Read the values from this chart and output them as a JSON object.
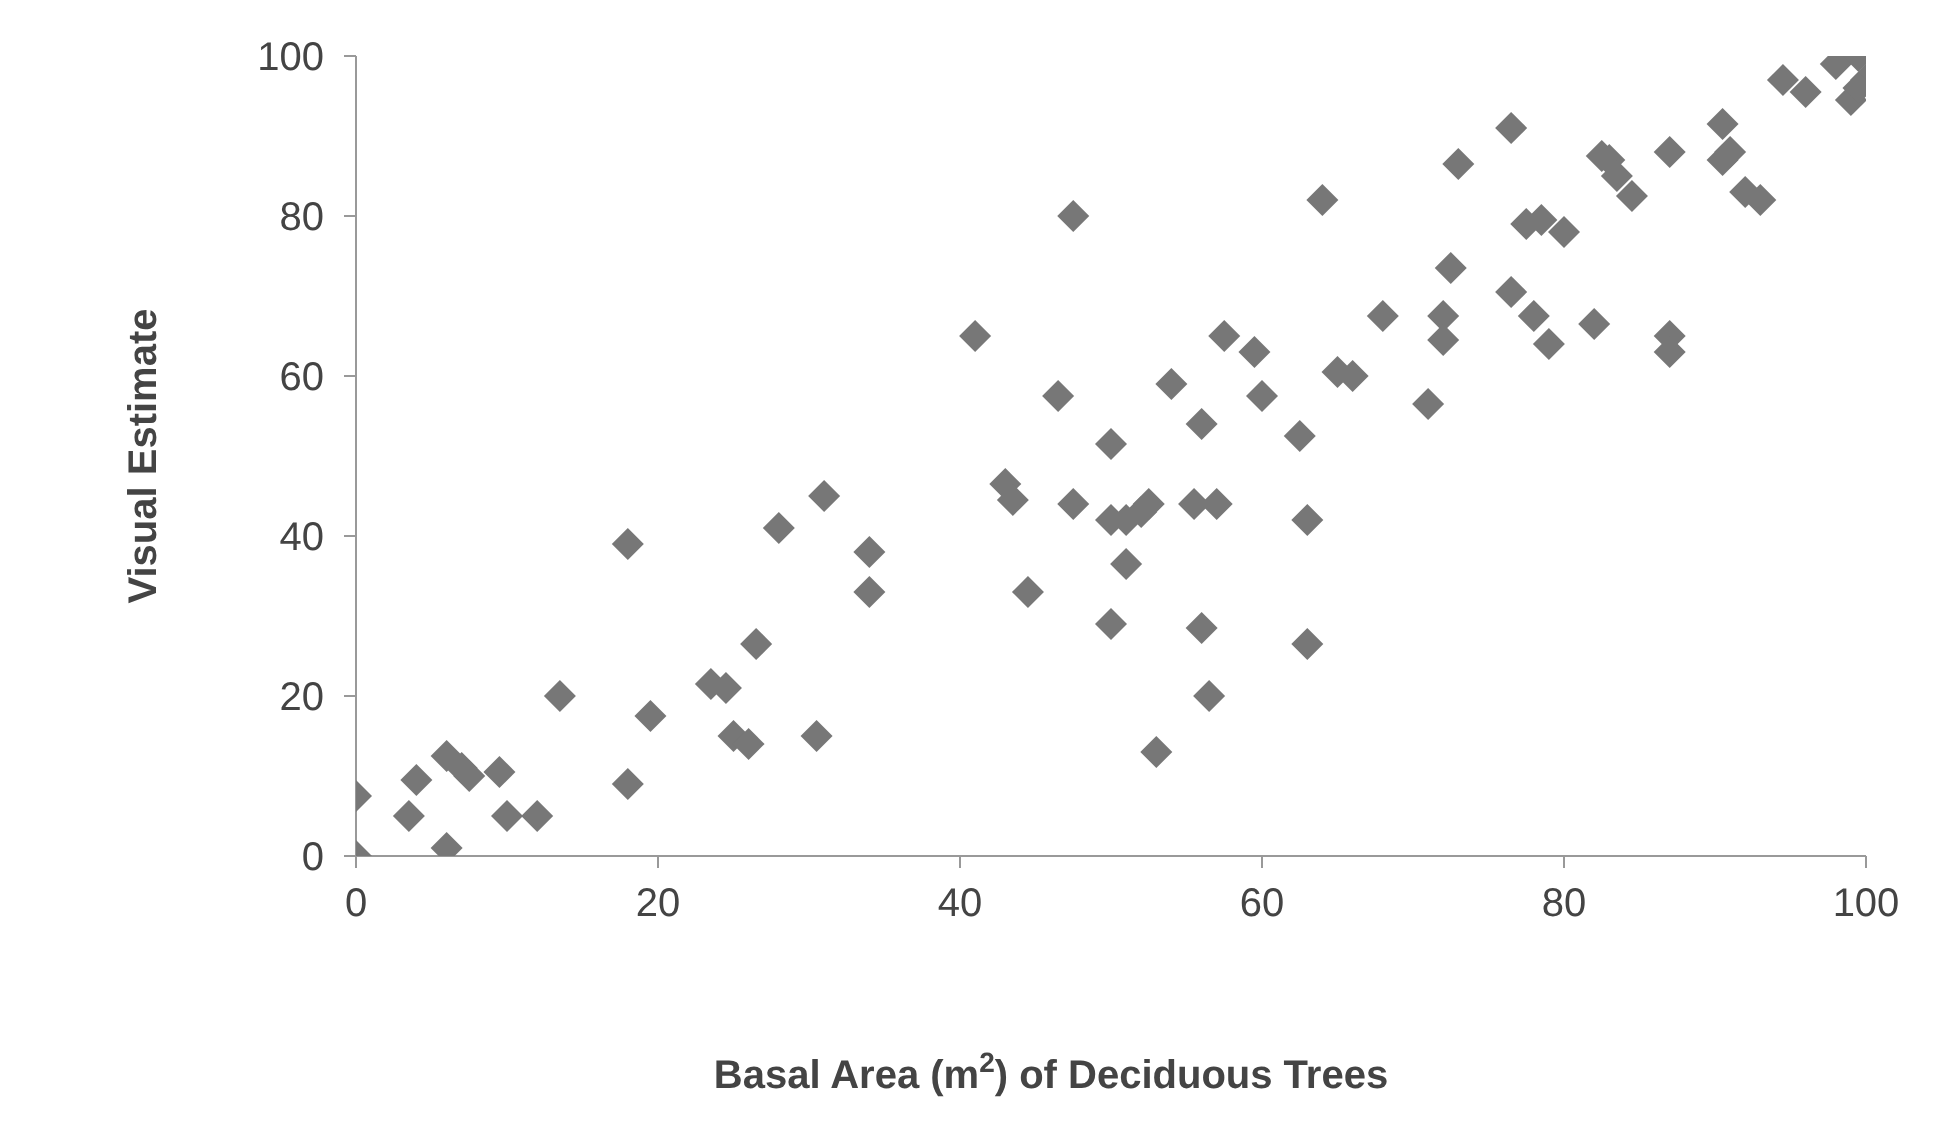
{
  "chart_data": {
    "type": "scatter",
    "xlabel": "Basal Area (m$^{2}$) of Deciduous Trees",
    "ylabel": "Visual Estimate",
    "marker": "diamond",
    "grid": false,
    "legend": false,
    "xlim": [
      0,
      100
    ],
    "xticks": [
      0,
      20,
      40,
      60,
      80,
      100
    ],
    "ylim": [
      0,
      100
    ],
    "yticks": [
      0,
      20,
      40,
      60,
      80,
      100
    ],
    "series": [
      {
        "color": "#777777",
        "x": [
          0,
          0,
          3.5,
          4,
          6,
          6,
          7,
          7.5,
          9.5,
          10,
          12,
          13.5,
          18,
          18,
          19.5,
          23.5,
          24.5,
          25,
          26,
          26.5,
          28,
          30.5,
          31,
          34,
          34,
          41,
          43,
          43.5,
          44.5,
          46.5,
          47.5,
          47.5,
          50,
          50,
          50,
          51,
          51,
          52,
          52.5,
          53,
          54,
          55.5,
          56,
          56,
          56.5,
          57,
          57.5,
          59.5,
          60,
          62.5,
          63,
          63,
          64,
          65,
          66,
          68,
          71,
          72,
          72,
          72.5,
          73,
          76.5,
          76.5,
          77.5,
          78,
          78.5,
          79,
          80,
          82,
          82.5,
          83,
          83.5,
          84.5,
          87,
          87,
          87,
          90.5,
          90.5,
          91,
          92,
          93,
          94.5,
          96,
          98,
          99,
          99.5,
          100,
          99.5
        ],
        "values": [
          0,
          7.5,
          5,
          9.5,
          1,
          12.5,
          11,
          10,
          10.5,
          5,
          5,
          20,
          9,
          39,
          17.5,
          21.5,
          21,
          15,
          14,
          26.5,
          41,
          15,
          45,
          38,
          33,
          65,
          46.5,
          44.5,
          33,
          57.5,
          44,
          80,
          42,
          29,
          51.5,
          36.5,
          42,
          43,
          44,
          13,
          59,
          44,
          54,
          28.5,
          20,
          44,
          65,
          63,
          57.5,
          52.5,
          42,
          26.5,
          82,
          60.5,
          60,
          67.5,
          56.5,
          67.5,
          64.5,
          73.5,
          86.5,
          91,
          70.5,
          79,
          67.5,
          79.5,
          64,
          78,
          66.5,
          87.5,
          87,
          85,
          82.5,
          88,
          65,
          63,
          91.5,
          87,
          88,
          83,
          82,
          97,
          95.5,
          99,
          94.5,
          100,
          97,
          96
        ]
      }
    ]
  }
}
